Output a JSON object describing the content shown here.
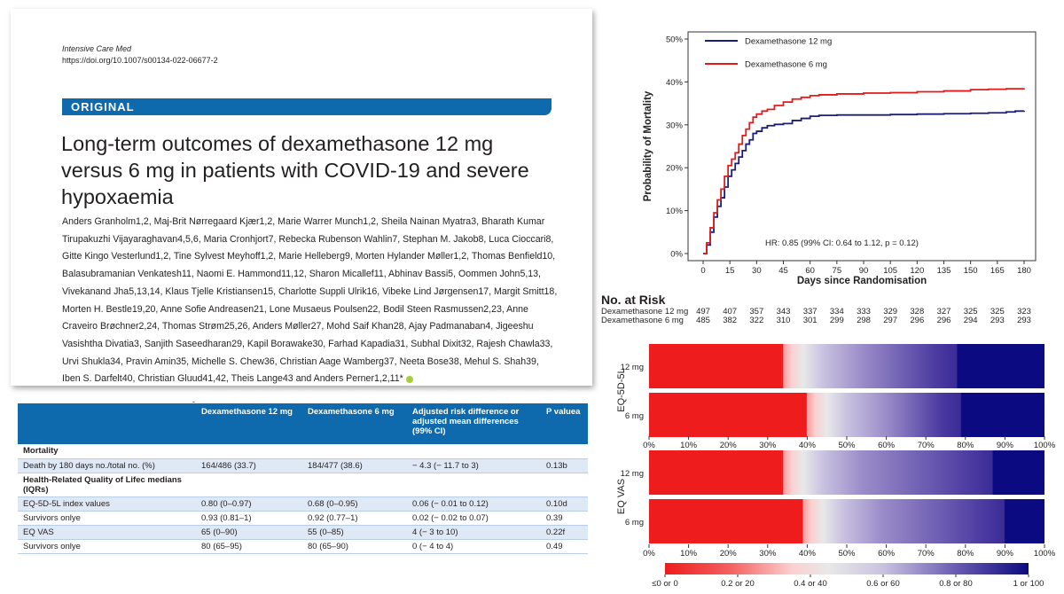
{
  "paper": {
    "journal": "Intensive Care Med",
    "doi": "https://doi.org/10.1007/s00134-022-06677-2",
    "section_label": "ORIGINAL",
    "title": "Long-term outcomes of dexamethasone 12 mg versus 6 mg in patients with COVID-19 and severe hypoxaemia",
    "authors": "Anders Granholm1,2, Maj-Brit Nørregaard Kjær1,2, Marie Warrer Munch1,2, Sheila Nainan Myatra3, Bharath Kumar Tirupakuzhi Vijayaraghavan4,5,6, Maria Cronhjort7, Rebecka Rubenson Wahlin7, Stephan M. Jakob8, Luca Cioccari8, Gitte Kingo Vesterlund1,2, Tine Sylvest Meyhoff1,2, Marie Helleberg9, Morten Hylander Møller1,2, Thomas Benfield10, Balasubramanian Venkatesh11, Naomi E. Hammond11,12, Sharon Micallef11, Abhinav Bassi5, Oommen John5,13, Vivekanand Jha5,13,14, Klaus Tjelle Kristiansen15, Charlotte Suppli Ulrik16, Vibeke Lind Jørgensen17, Margit Smitt18, Morten H. Bestle19,20, Anne Sofie Andreasen21, Lone Musaeus Poulsen22, Bodil Steen Rasmussen2,23, Anne Craveiro Brøchner2,24, Thomas Strøm25,26, Anders Møller27, Mohd Saif Khan28, Ajay Padmanaban4, Jigeeshu Vasishtha Divatia3, Sanjith Saseedharan29, Kapil Borawake30, Farhad Kapadia31, Subhal Dixit32, Rajesh Chawla33, Urvi Shukla34, Pravin Amin35, Michelle S. Chew36, Christian Aage Wamberg37, Neeta Bose38, Mehul S. Shah39, Iben S. Darfelt40, Christian Gluud41,42, Theis Lange43 and Anders Perner1,2,11*",
    "stray_mark": "-"
  },
  "table": {
    "headers": [
      "",
      "Dexamethasone 12 mg",
      "Dexamethasone 6 mg",
      "Adjusted risk difference or adjusted mean differences (99% CI)",
      "P valuea"
    ],
    "rows": [
      {
        "cells": [
          "Mortality",
          "",
          "",
          "",
          ""
        ],
        "section": true,
        "shade": false
      },
      {
        "cells": [
          "Death by 180 days no./total no. (%)",
          "164/486 (33.7)",
          "184/477 (38.6)",
          "− 4.3 (− 11.7 to 3)",
          "0.13b"
        ],
        "section": false,
        "shade": true
      },
      {
        "cells": [
          "Health-Related Quality of Lifec medians (IQRs)",
          "",
          "",
          "",
          ""
        ],
        "section": true,
        "shade": false
      },
      {
        "cells": [
          "EQ-5D-5L index values",
          "0.80 (0–0.97)",
          "0.68 (0–0.95)",
          "0.06 (− 0.01 to 0.12)",
          "0.10d"
        ],
        "section": false,
        "shade": true
      },
      {
        "cells": [
          "Survivors onlye",
          "0.93 (0.81–1)",
          "0.92 (0.77–1)",
          "0.02 (− 0.02 to 0.07)",
          "0.39"
        ],
        "section": false,
        "shade": false
      },
      {
        "cells": [
          "EQ VAS",
          "65 (0–90)",
          "55 (0–85)",
          "4 (− 3 to 10)",
          "0.22f"
        ],
        "section": false,
        "shade": true
      },
      {
        "cells": [
          "Survivors onlye",
          "80 (65–95)",
          "80 (65–90)",
          "0 (− 4 to 4)",
          "0.49"
        ],
        "section": false,
        "shade": false
      }
    ]
  },
  "chart_data": [
    {
      "type": "line",
      "ylabel": "Probability of Mortality",
      "xlabel": "Days since Randomisation",
      "xlim": [
        0,
        180
      ],
      "ylim": [
        0,
        50
      ],
      "x_ticks": [
        0,
        15,
        30,
        45,
        60,
        75,
        90,
        105,
        120,
        135,
        150,
        165,
        180
      ],
      "y_ticks": [
        "0%",
        "10%",
        "20%",
        "30%",
        "40%",
        "50%"
      ],
      "annotation": "HR: 0.85 (99% CI: 0.64 to 1.12, p = 0.12)",
      "legend_position": "top-left",
      "series": [
        {
          "name": "Dexamethasone 12 mg",
          "color": "#1a1e7a",
          "x": [
            0,
            2,
            4,
            6,
            8,
            10,
            12,
            14,
            16,
            18,
            20,
            22,
            24,
            26,
            28,
            30,
            33,
            36,
            40,
            45,
            50,
            55,
            60,
            65,
            75,
            90,
            105,
            120,
            135,
            150,
            160,
            170,
            175,
            180
          ],
          "y": [
            0,
            2,
            5,
            8.5,
            11,
            13,
            15.5,
            18,
            19.5,
            21,
            22.5,
            24,
            25.5,
            26.5,
            28,
            28.5,
            29.3,
            29.8,
            30.1,
            30.3,
            31,
            31.5,
            32,
            32.2,
            32.3,
            32.3,
            32.4,
            32.5,
            32.6,
            32.7,
            32.8,
            33.0,
            33.2,
            33.3
          ]
        },
        {
          "name": "Dexamethasone 6 mg",
          "color": "#e31a1c",
          "x": [
            0,
            2,
            4,
            6,
            8,
            10,
            12,
            14,
            16,
            18,
            20,
            22,
            24,
            26,
            28,
            30,
            33,
            36,
            40,
            45,
            50,
            55,
            60,
            65,
            75,
            90,
            105,
            120,
            135,
            150,
            160,
            170,
            180
          ],
          "y": [
            0,
            2.5,
            6,
            9.5,
            12.5,
            15,
            18,
            20.5,
            22,
            23.5,
            25.5,
            27.5,
            29,
            30.5,
            31.8,
            32.5,
            33.2,
            33.6,
            34.5,
            35.3,
            36,
            36.4,
            36.8,
            37,
            37.2,
            37.4,
            37.5,
            37.7,
            37.9,
            38.2,
            38.3,
            38.4,
            38.5
          ]
        }
      ]
    },
    {
      "type": "table",
      "title": "No. at Risk",
      "columns": [
        0,
        15,
        30,
        45,
        60,
        75,
        90,
        105,
        120,
        135,
        150,
        165,
        180
      ],
      "rows": [
        {
          "label": "Dexamethasone 12 mg",
          "values": [
            "497",
            "407",
            "357",
            "343",
            "337",
            "334",
            "333",
            "329",
            "328",
            "327",
            "325",
            "325",
            "323"
          ]
        },
        {
          "label": "Dexamethasone 6 mg",
          "values": [
            "485",
            "382",
            "322",
            "310",
            "301",
            "299",
            "298",
            "297",
            "296",
            "296",
            "294",
            "293",
            "293"
          ]
        }
      ]
    },
    {
      "type": "bar",
      "orientation": "horizontal",
      "stacked": true,
      "panels": [
        {
          "label": "EQ-5D-5L",
          "categories": [
            "12 mg",
            "6 mg"
          ],
          "red_end_fraction": [
            0.34,
            0.4
          ],
          "blue_start_fraction": [
            0.78,
            0.79
          ]
        },
        {
          "label": "EQ VAS",
          "categories": [
            "12 mg",
            "6 mg"
          ],
          "red_end_fraction": [
            0.34,
            0.39
          ],
          "blue_start_fraction": [
            0.87,
            0.9
          ]
        }
      ],
      "x_ticks": [
        "0%",
        "10%",
        "20%",
        "30%",
        "40%",
        "50%",
        "60%",
        "70%",
        "80%",
        "90%",
        "100%"
      ],
      "colorbar_labels": [
        "≤0 or 0",
        "0.2 or 20",
        "0.4 or 40",
        "0.6 or 60",
        "0.8 or 80",
        "1 or 100"
      ]
    }
  ]
}
